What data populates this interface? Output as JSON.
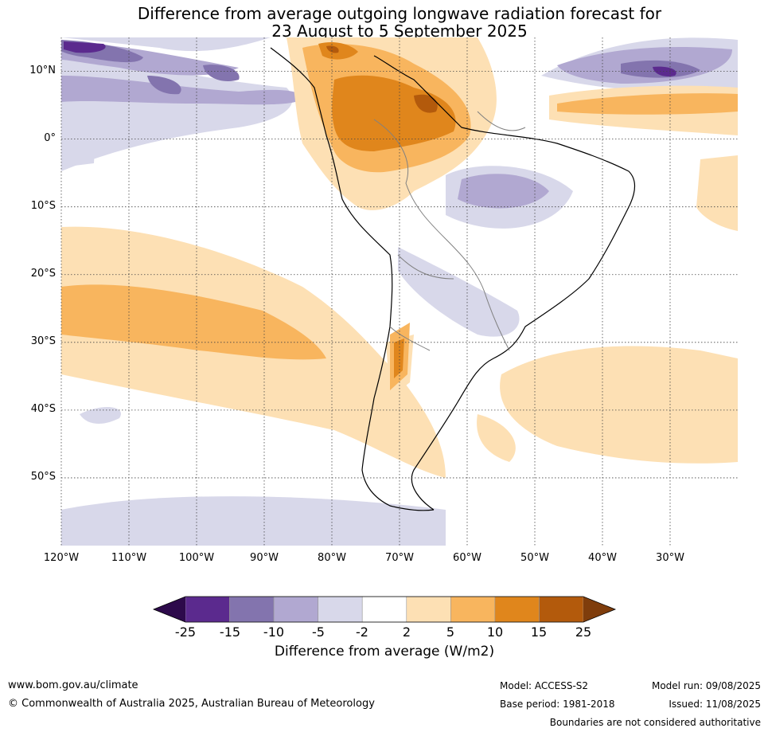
{
  "title": {
    "line1": "Difference from average outgoing longwave radiation forecast for",
    "line2": "23 August to 5 September 2025"
  },
  "map": {
    "lat_labels": [
      "10°N",
      "0°",
      "10°S",
      "20°S",
      "30°S",
      "40°S",
      "50°S"
    ],
    "lon_labels": [
      "120°W",
      "110°W",
      "100°W",
      "90°W",
      "80°W",
      "70°W",
      "60°W",
      "50°W",
      "40°W",
      "30°W"
    ],
    "extent": {
      "lon": [
        -120,
        -20
      ],
      "lat": [
        -60,
        15
      ]
    },
    "gridlines": true
  },
  "colorbar": {
    "ticks": [
      "-25",
      "-15",
      "-10",
      "-5",
      "-2",
      "2",
      "5",
      "10",
      "15",
      "25"
    ],
    "colors": {
      "below_min": "#2d0a4b",
      "bins": [
        "#5b2a8e",
        "#8374ae",
        "#b1a8d1",
        "#d8d8ea",
        "#ffffff",
        "#fde0b4",
        "#f8b55e",
        "#e0861c",
        "#b35a0c"
      ],
      "above_max": "#7f3d0c"
    },
    "label": "Difference from average (W/m2)"
  },
  "footer": {
    "website": "www.bom.gov.au/climate",
    "copyright": "© Commonwealth of Australia 2025, Australian Bureau of Meteorology",
    "model": "Model: ACCESS-S2",
    "base_period": "Base period: 1981-2018",
    "model_run": "Model run: 09/08/2025",
    "issued": "Issued: 11/08/2025",
    "disclaimer": "Boundaries are not considered authoritative"
  }
}
